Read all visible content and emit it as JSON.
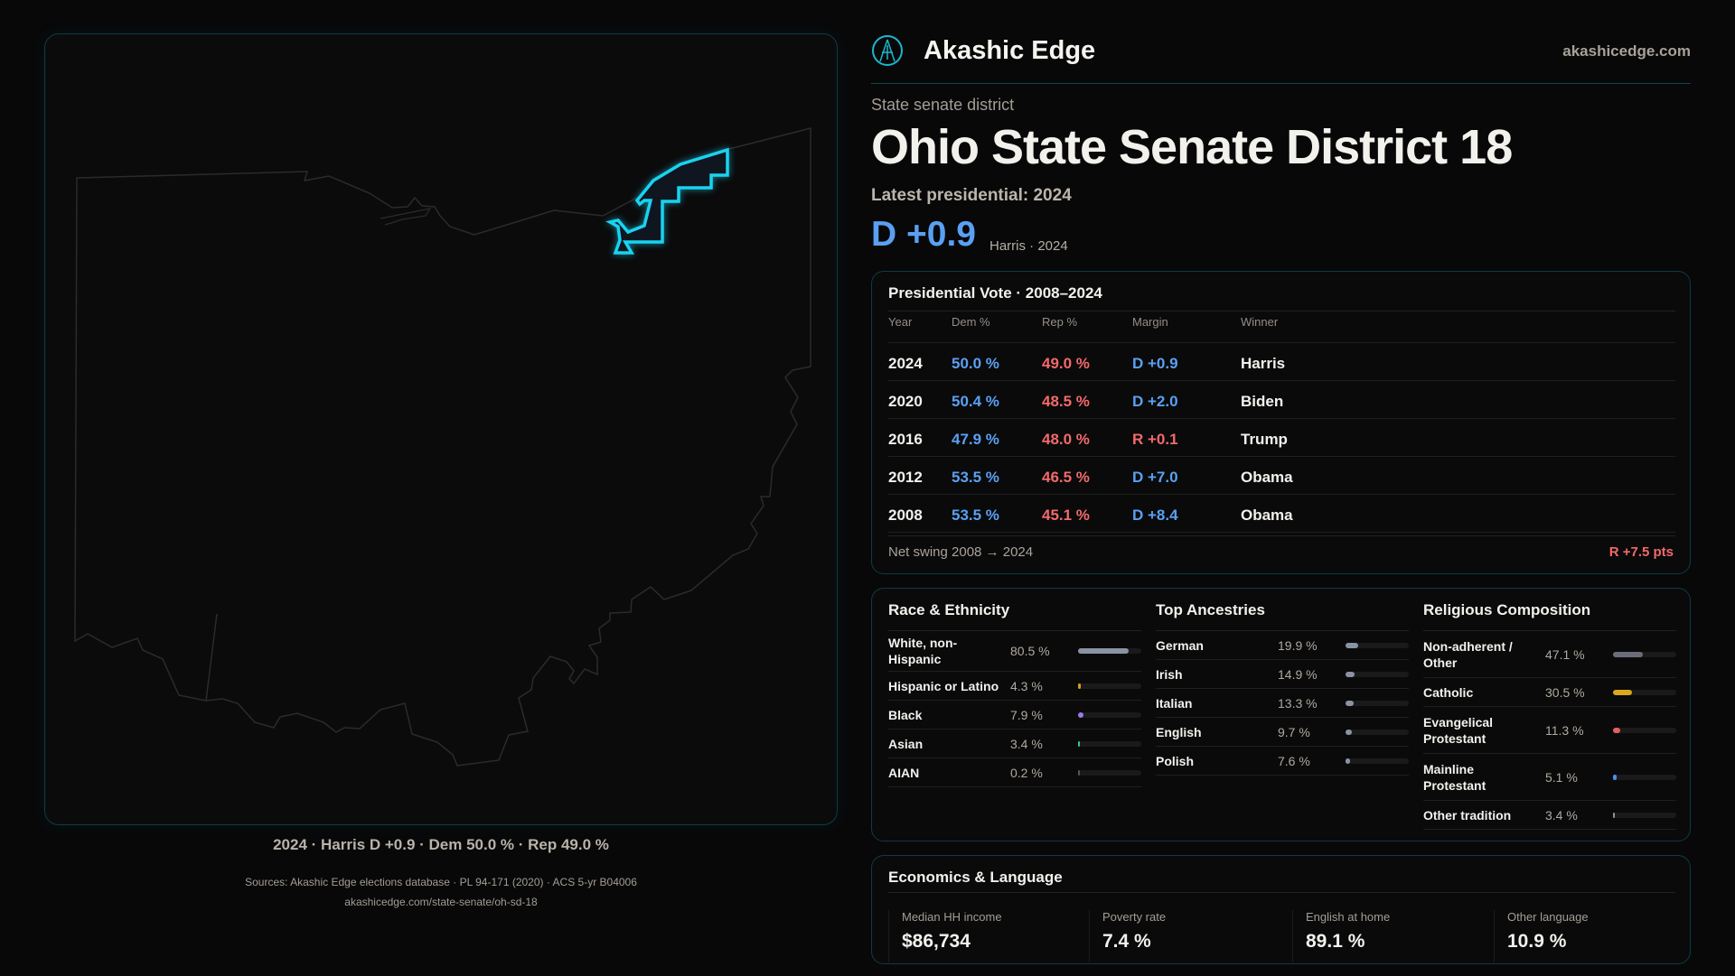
{
  "brand": {
    "name": "Akashic Edge",
    "site": "akashicedge.com"
  },
  "district": {
    "kind": "State senate district",
    "title": "Ohio State Senate District 18",
    "latest_label": "Latest presidential: 2024",
    "margin": "D +0.9",
    "margin_sub": "Harris · 2024"
  },
  "map": {
    "caption": "2024 · Harris D +0.9 · Dem 50.0 % · Rep 49.0 %",
    "highlight_color": "#19d3f0"
  },
  "presidential": {
    "title": "Presidential Vote · 2008–2024",
    "headers": [
      "Year",
      "Dem %",
      "Rep %",
      "Margin",
      "Winner"
    ],
    "rows": [
      {
        "year": "2024",
        "dem": "50.0 %",
        "rep": "49.0 %",
        "margin": "D +0.9",
        "party": "D",
        "winner": "Harris"
      },
      {
        "year": "2020",
        "dem": "50.4 %",
        "rep": "48.5 %",
        "margin": "D +2.0",
        "party": "D",
        "winner": "Biden"
      },
      {
        "year": "2016",
        "dem": "47.9 %",
        "rep": "48.0 %",
        "margin": "R +0.1",
        "party": "R",
        "winner": "Trump"
      },
      {
        "year": "2012",
        "dem": "53.5 %",
        "rep": "46.5 %",
        "margin": "D +7.0",
        "party": "D",
        "winner": "Obama"
      },
      {
        "year": "2008",
        "dem": "53.5 %",
        "rep": "45.1 %",
        "margin": "D +8.4",
        "party": "D",
        "winner": "Obama"
      }
    ],
    "net_label": "Net swing 2008 → 2024",
    "net_value": "R +7.5 pts"
  },
  "demographics": [
    {
      "title": "Race & Ethnicity",
      "items": [
        {
          "label": "White, non-Hispanic",
          "value": "80.5 %",
          "pct": 80.5,
          "color": "#8a93a3"
        },
        {
          "label": "Hispanic or Latino",
          "value": "4.3 %",
          "pct": 4.3,
          "color": "#d99a1f"
        },
        {
          "label": "Black",
          "value": "7.9 %",
          "pct": 7.9,
          "color": "#9a7ae8"
        },
        {
          "label": "Asian",
          "value": "3.4 %",
          "pct": 3.4,
          "color": "#2fc79a"
        },
        {
          "label": "AIAN",
          "value": "0.2 %",
          "pct": 0.2,
          "color": "#555"
        }
      ]
    },
    {
      "title": "Top Ancestries",
      "items": [
        {
          "label": "German",
          "value": "19.9 %",
          "pct": 19.9,
          "color": "#8a93a3"
        },
        {
          "label": "Irish",
          "value": "14.9 %",
          "pct": 14.9,
          "color": "#8a93a3"
        },
        {
          "label": "Italian",
          "value": "13.3 %",
          "pct": 13.3,
          "color": "#8a93a3"
        },
        {
          "label": "English",
          "value": "9.7 %",
          "pct": 9.7,
          "color": "#8a93a3"
        },
        {
          "label": "Polish",
          "value": "7.6 %",
          "pct": 7.6,
          "color": "#8a93a3"
        }
      ]
    },
    {
      "title": "Religious Composition",
      "items": [
        {
          "label": "Non-adherent / Other",
          "value": "47.1 %",
          "pct": 47.1,
          "color": "#6b6e78"
        },
        {
          "label": "Catholic",
          "value": "30.5 %",
          "pct": 30.5,
          "color": "#d8a81f"
        },
        {
          "label": "Evangelical Protestant",
          "value": "11.3 %",
          "pct": 11.3,
          "color": "#e06060"
        },
        {
          "label": "Mainline Protestant",
          "value": "5.1 %",
          "pct": 5.1,
          "color": "#4f8ee8"
        },
        {
          "label": "Other tradition",
          "value": "3.4 %",
          "pct": 3.4,
          "color": "#8a93a3"
        }
      ]
    }
  ],
  "economics": {
    "title": "Economics & Language",
    "stats": [
      {
        "label": "Median HH income",
        "value": "$86,734"
      },
      {
        "label": "Poverty rate",
        "value": "7.4 %"
      },
      {
        "label": "English at home",
        "value": "89.1 %"
      },
      {
        "label": "Other language",
        "value": "10.9 %"
      }
    ]
  },
  "footer": {
    "sources": "Sources: Akashic Edge elections database · PL 94-171 (2020) · ACS 5-yr B04006",
    "url": "akashicedge.com/state-senate/oh-sd-18"
  }
}
